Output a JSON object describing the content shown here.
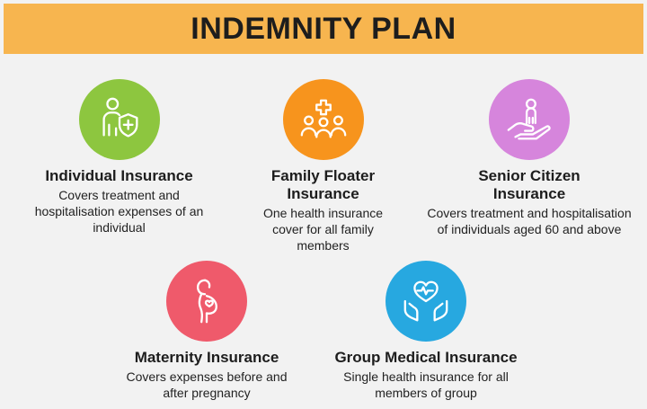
{
  "header": {
    "title": "INDEMNITY PLAN"
  },
  "plans": [
    {
      "icon": "person-shield-icon",
      "color": "#8dc63f",
      "title": "Individual Insurance",
      "description": "Covers treatment and hospitalisation expenses of an individual"
    },
    {
      "icon": "family-group-icon",
      "color": "#f7941d",
      "title": "Family Floater Insurance",
      "description": "One health insurance cover for all family members"
    },
    {
      "icon": "hand-holding-person-icon",
      "color": "#d685dc",
      "title": "Senior Citizen Insurance",
      "description": "Covers treatment and hospitalisation of individuals aged 60 and above"
    },
    {
      "icon": "pregnant-woman-icon",
      "color": "#ef5a6b",
      "title": "Maternity Insurance",
      "description": "Covers expenses before and after pregnancy"
    },
    {
      "icon": "hands-holding-heart-icon",
      "color": "#27a8e0",
      "title": "Group Medical Insurance",
      "description": "Single health insurance for all members of group"
    }
  ]
}
